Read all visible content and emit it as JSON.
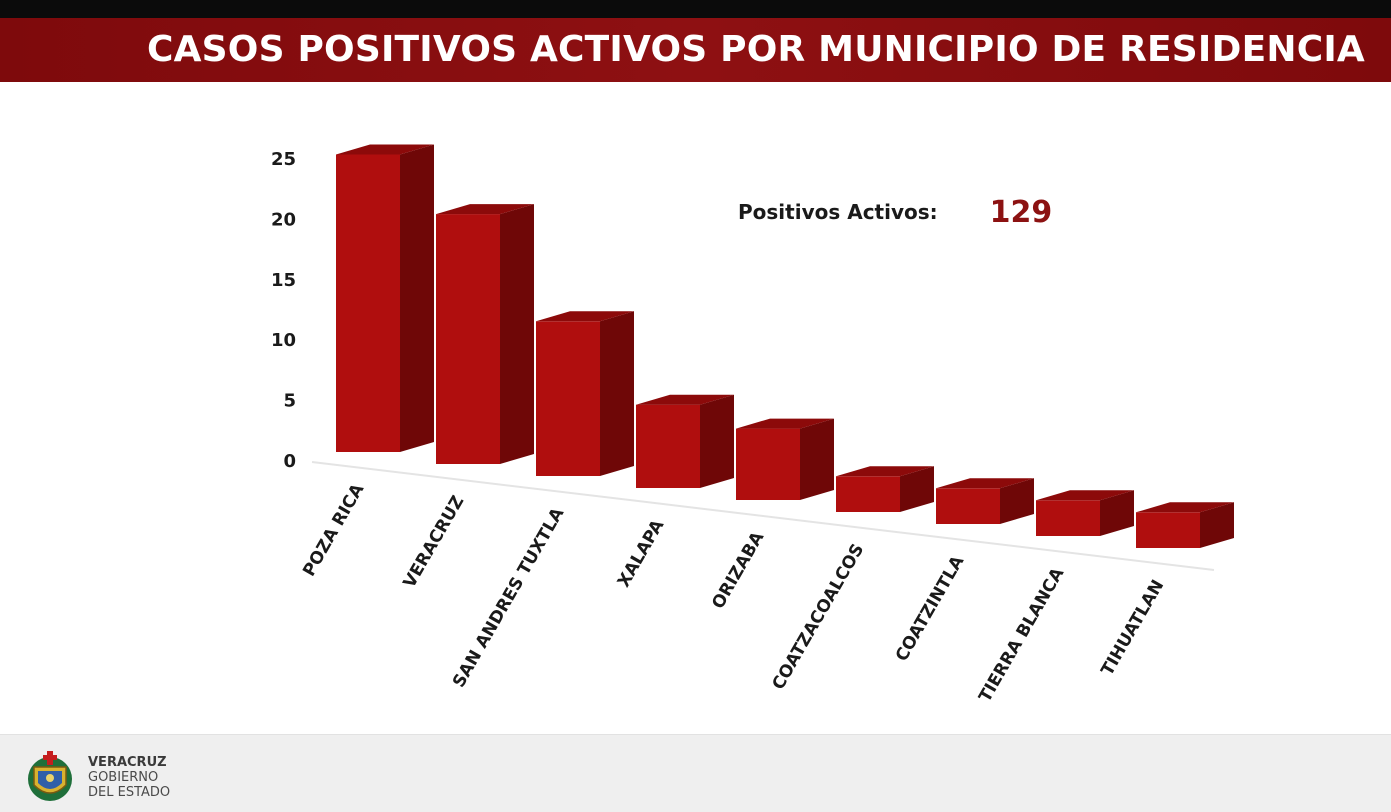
{
  "header": {
    "title": "CASOS POSITIVOS ACTIVOS POR MUNICIPIO DE RESIDENCIA"
  },
  "summary": {
    "label": "Positivos Activos:",
    "value": "129"
  },
  "footer": {
    "line1": "VERACRUZ",
    "line2": "GOBIERNO",
    "line3": "DEL ESTADO",
    "seal_icon": "state-seal-icon"
  },
  "colors": {
    "banner": "#8a0f10",
    "bar_front": "#b00e0e",
    "bar_side": "#6f0707",
    "bar_top": "#8c0a0a",
    "value_text": "#8c1212"
  },
  "chart_data": {
    "type": "bar",
    "title": "CASOS POSITIVOS ACTIVOS POR MUNICIPIO DE RESIDENCIA",
    "categories": [
      "POZA RICA",
      "VERACRUZ",
      "SAN ANDRES TUXTLA",
      "XALAPA",
      "ORIZABA",
      "COATZACOALCOS",
      "COATZINTLA",
      "TIERRA BLANCA",
      "TIHUATLAN"
    ],
    "values": [
      25,
      21,
      13,
      7,
      6,
      3,
      3,
      3,
      3
    ],
    "yticks": [
      "0",
      "5",
      "10",
      "15",
      "20",
      "25"
    ],
    "ylim": [
      0,
      25
    ],
    "xlabel": "",
    "ylabel": "",
    "grid": false,
    "legend": "none",
    "style": "3d"
  }
}
